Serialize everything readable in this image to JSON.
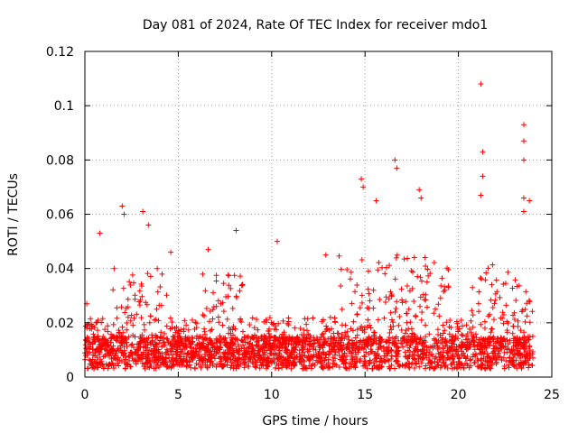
{
  "chart_data": {
    "type": "scatter",
    "title": "Day 081 of 2024, Rate Of TEC Index for receiver mdo1",
    "xlabel": "GPS time / hours",
    "ylabel": "ROTI / TECUs",
    "xlim": [
      0,
      25
    ],
    "ylim": [
      0,
      0.12
    ],
    "xticks": [
      0,
      5,
      10,
      15,
      20,
      25
    ],
    "yticks": [
      0,
      0.02,
      0.04,
      0.06,
      0.08,
      0.1,
      0.12
    ],
    "xtick_labels": [
      "0",
      "5",
      "10",
      "15",
      "20",
      "25"
    ],
    "ytick_labels": [
      "0",
      "0.02",
      "0.04",
      "0.06",
      "0.08",
      "0.1",
      "0.12"
    ],
    "grid": true,
    "marker": "plus",
    "color": "#ff0000",
    "series": [
      {
        "name": "ROTI",
        "x_range": [
          0,
          24
        ],
        "baseline_range": [
          0.003,
          0.015
        ],
        "notable_points": [
          {
            "x": 0.1,
            "y": 0.027
          },
          {
            "x": 0.8,
            "y": 0.053
          },
          {
            "x": 2.0,
            "y": 0.063
          },
          {
            "x": 2.1,
            "y": 0.06
          },
          {
            "x": 3.1,
            "y": 0.061
          },
          {
            "x": 3.4,
            "y": 0.056
          },
          {
            "x": 4.6,
            "y": 0.046
          },
          {
            "x": 6.6,
            "y": 0.047
          },
          {
            "x": 8.1,
            "y": 0.054
          },
          {
            "x": 10.3,
            "y": 0.05
          },
          {
            "x": 12.9,
            "y": 0.045
          },
          {
            "x": 14.8,
            "y": 0.073
          },
          {
            "x": 14.9,
            "y": 0.07
          },
          {
            "x": 15.6,
            "y": 0.065
          },
          {
            "x": 16.6,
            "y": 0.08
          },
          {
            "x": 16.7,
            "y": 0.077
          },
          {
            "x": 17.9,
            "y": 0.069
          },
          {
            "x": 18.0,
            "y": 0.066
          },
          {
            "x": 21.2,
            "y": 0.108
          },
          {
            "x": 21.3,
            "y": 0.083
          },
          {
            "x": 21.3,
            "y": 0.074
          },
          {
            "x": 21.2,
            "y": 0.067
          },
          {
            "x": 23.5,
            "y": 0.093
          },
          {
            "x": 23.5,
            "y": 0.087
          },
          {
            "x": 23.5,
            "y": 0.08
          },
          {
            "x": 23.5,
            "y": 0.066
          },
          {
            "x": 23.8,
            "y": 0.065
          },
          {
            "x": 23.5,
            "y": 0.061
          }
        ],
        "active_windows": [
          {
            "from": 1.5,
            "to": 4.5,
            "peak": 0.04
          },
          {
            "from": 6.0,
            "to": 8.5,
            "peak": 0.038
          },
          {
            "from": 13.5,
            "to": 19.5,
            "peak": 0.045
          },
          {
            "from": 20.5,
            "to": 24.0,
            "peak": 0.042
          }
        ]
      }
    ]
  }
}
